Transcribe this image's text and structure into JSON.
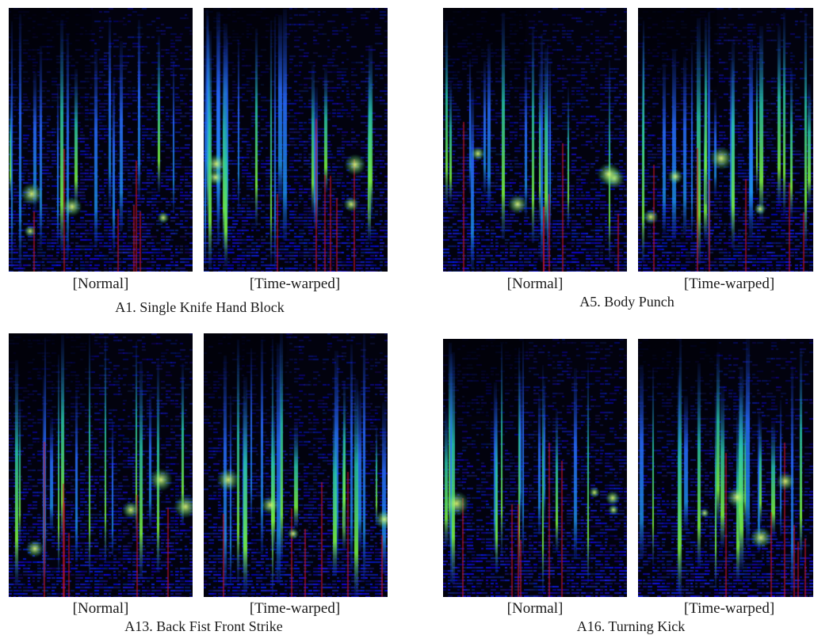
{
  "panels": [
    {
      "caption": "A1. Single Knife Hand Block",
      "left_label": "[Normal]",
      "right_label": "[Time-warped]",
      "seed": 11
    },
    {
      "caption": "A5. Body Punch",
      "left_label": "[Normal]",
      "right_label": "[Time-warped]",
      "seed": 23
    },
    {
      "caption": "A13. Back Fist Front Strike",
      "left_label": "[Normal]",
      "right_label": "[Time-warped]",
      "seed": 37
    },
    {
      "caption": "A16. Turning Kick",
      "left_label": "[Normal]",
      "right_label": "[Time-warped]",
      "seed": 53
    }
  ]
}
